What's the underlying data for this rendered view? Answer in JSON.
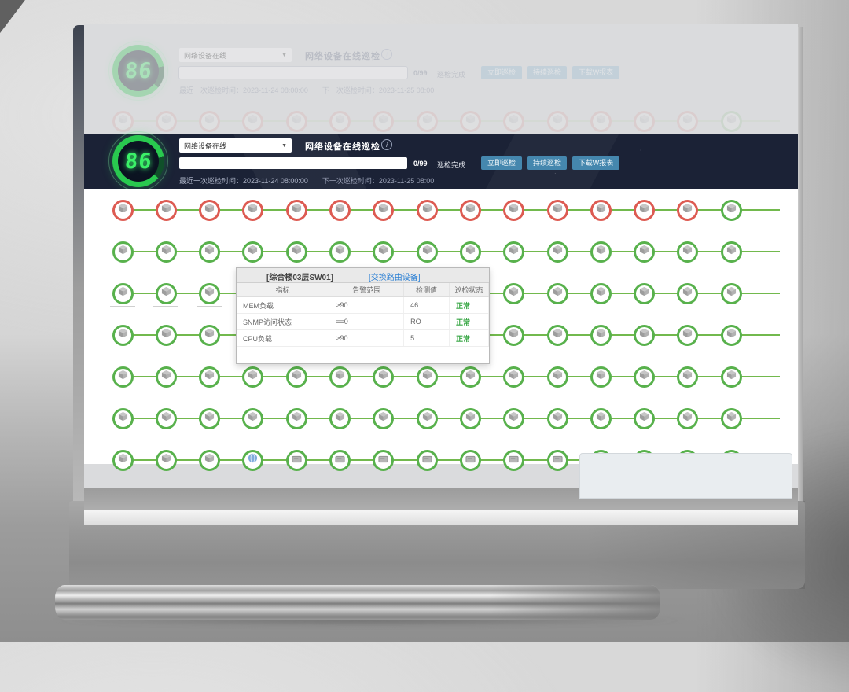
{
  "header": {
    "score": "86",
    "device_filter": "网络设备在线",
    "title": "网络设备在线巡检",
    "info_glyph": "i",
    "dropdown_caret": "▼",
    "progress": {
      "count": "0/99",
      "done_label": "巡检完成",
      "percent": 0
    },
    "buttons": [
      {
        "label": "立即巡检"
      },
      {
        "label": "持续巡检"
      },
      {
        "label": "下载W报表"
      }
    ],
    "last_check_label": "最近一次巡检时间：2023-11-24 08:00:00",
    "next_check_label": "下一次巡检时间：2023-11-25 08:00",
    "accent_color": "#4587ae"
  },
  "tooltip": {
    "device_name": "[综合楼03层SW01]",
    "device_link": "[交换路由设备]",
    "columns": [
      "指标",
      "告警范围",
      "检测值",
      "巡检状态"
    ],
    "rows": [
      {
        "metric": "MEM负载",
        "range": ">90",
        "value": "46",
        "status": "正常"
      },
      {
        "metric": "SNMP访问状态",
        "range": "==0",
        "value": "RO",
        "status": "正常"
      },
      {
        "metric": "CPU负载",
        "range": ">90",
        "value": "5",
        "status": "正常"
      }
    ],
    "status_color": "#3aa746"
  },
  "grid": {
    "nodes_per_row": 15,
    "colors": {
      "alarm": "#dd5b52",
      "ok": "#58b14c",
      "line": "#72b94d",
      "gauge_on": "#29c94f",
      "gauge_off": "#10502a"
    },
    "rows": [
      {
        "segments": [
          {
            "status": "alarm",
            "icon": "cube",
            "n": 14
          },
          {
            "status": "ok",
            "icon": "cube",
            "n": 1
          }
        ]
      },
      {
        "segments": [
          {
            "status": "ok",
            "icon": "cube",
            "n": 15
          }
        ]
      },
      {
        "segments": [
          {
            "status": "ok",
            "icon": "cube",
            "n": 15
          }
        ],
        "labels": 3
      },
      {
        "segments": [
          {
            "status": "ok",
            "icon": "cube",
            "n": 15
          }
        ]
      },
      {
        "segments": [
          {
            "status": "ok",
            "icon": "cube",
            "n": 15
          }
        ]
      },
      {
        "segments": [
          {
            "status": "ok",
            "icon": "cube",
            "n": 15
          }
        ]
      },
      {
        "segments": [
          {
            "status": "ok",
            "icon": "cube",
            "n": 3
          },
          {
            "status": "ok",
            "icon": "globe",
            "n": 1
          },
          {
            "status": "ok",
            "icon": "server",
            "n": 11
          }
        ]
      }
    ]
  }
}
